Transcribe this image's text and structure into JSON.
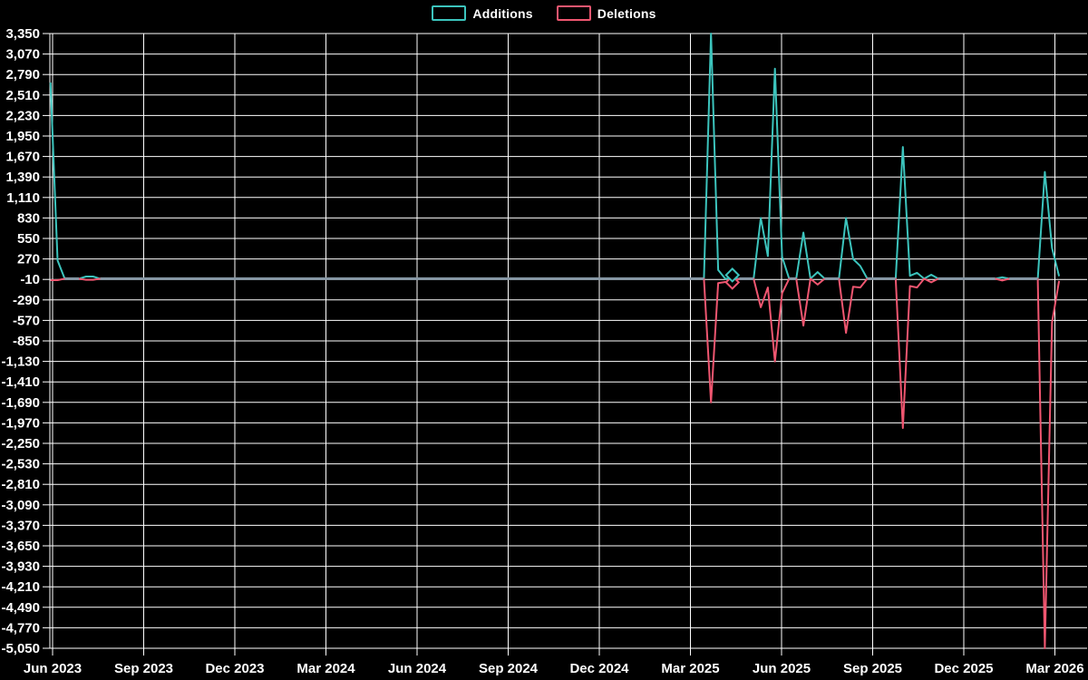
{
  "page": {
    "background": "#000000"
  },
  "legend": {
    "items": [
      {
        "label": "Additions",
        "color": "#3cc4bd"
      },
      {
        "label": "Deletions",
        "color": "#ef5670"
      }
    ]
  },
  "chart_data": {
    "type": "line",
    "title": "",
    "xlabel": "",
    "ylabel": "",
    "x_unit": "week",
    "weeks_total": 143,
    "x_range_labels": {
      "start": "Jun 2023",
      "end": "Mar 2026"
    },
    "x_tick_labels": [
      "Jun 2023",
      "Sep 2023",
      "Dec 2023",
      "Mar 2024",
      "Jun 2024",
      "Sep 2024",
      "Dec 2024",
      "Mar 2025",
      "Jun 2025",
      "Sep 2025",
      "Dec 2025",
      "Mar 2026"
    ],
    "y_axis": {
      "max": 3350,
      "min": -5050,
      "step": 280
    },
    "y_tick_labels": [
      "3,350",
      "3,070",
      "2,790",
      "2,510",
      "2,230",
      "1,950",
      "1,670",
      "1,390",
      "1,110",
      "830",
      "550",
      "270",
      "-10",
      "-290",
      "-570",
      "-850",
      "-1,130",
      "-1,410",
      "-1,690",
      "-1,970",
      "-2,250",
      "-2,530",
      "-2,810",
      "-3,090",
      "-3,370",
      "-3,650",
      "-3,930",
      "-4,210",
      "-4,490",
      "-4,770",
      "-5,050"
    ],
    "grid": true,
    "legend_position": "top-center",
    "baseline_overlap_color": "#8697a5",
    "hover_marker": {
      "week": 96,
      "symbol": "diamond"
    },
    "series": [
      {
        "name": "Additions",
        "color": "#3cc4bd",
        "baseline_value": 0,
        "nonzero_points": {
          "0": 2680,
          "1": 250,
          "5": 30,
          "6": 30,
          "93": 3350,
          "94": 120,
          "100": 830,
          "101": 310,
          "102": 2870,
          "103": 300,
          "106": 630,
          "108": 90,
          "112": 830,
          "113": 270,
          "114": 175,
          "120": 1800,
          "121": 40,
          "122": 80,
          "124": 55,
          "134": 20,
          "140": 1460,
          "141": 420,
          "142": 35
        }
      },
      {
        "name": "Deletions",
        "color": "#ef5670",
        "baseline_value": 0,
        "nonzero_points": {
          "0": -20,
          "1": -20,
          "5": -15,
          "6": -15,
          "93": -1690,
          "94": -60,
          "95": -45,
          "96": -40,
          "100": -390,
          "101": -120,
          "102": -1130,
          "103": -200,
          "106": -640,
          "108": -80,
          "112": -740,
          "113": -110,
          "114": -120,
          "120": -2040,
          "121": -100,
          "122": -120,
          "124": -50,
          "134": -25,
          "140": -5050,
          "141": -600,
          "142": -30
        }
      }
    ]
  }
}
